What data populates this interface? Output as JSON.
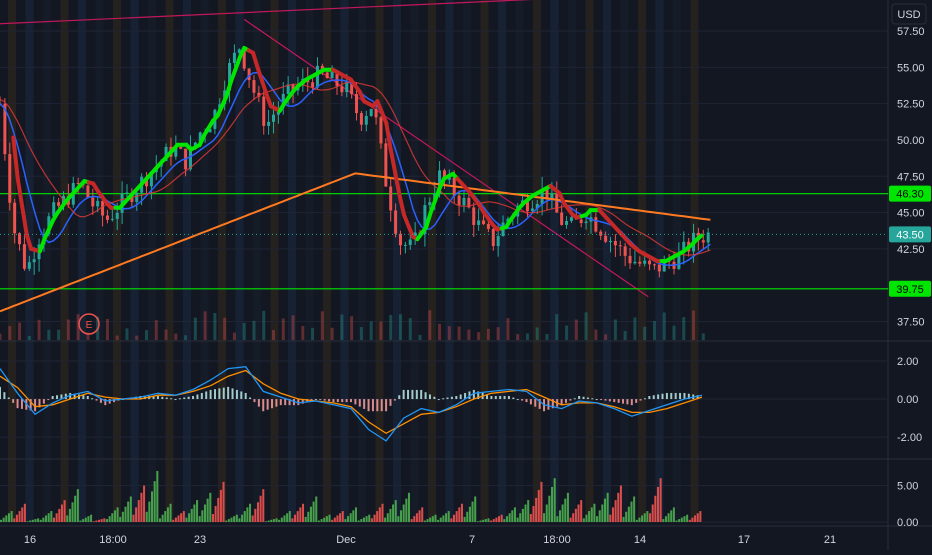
{
  "currency_label": "USD",
  "colors": {
    "background": "#131722",
    "axis_text": "#d1d4dc",
    "grid": "#1f2433",
    "up": "#26a69a",
    "down": "#ef5350",
    "level_line": "#00e600",
    "trend_line": "#c2185b",
    "ema_orange": "#ff7a21",
    "ema_blue": "#2962ff",
    "ema_red": "#e53935",
    "macd": "#2196f3",
    "signal": "#ff8f00",
    "price_label_bg": "#26a69a",
    "level_label_bg": "#00e600"
  },
  "earnings_marker": "E",
  "chart_data": [
    {
      "type": "candlestick",
      "x_ticks": [
        "16",
        "18:00",
        "23",
        "Dec",
        "7",
        "18:00",
        "14",
        "17",
        "21"
      ],
      "y_ticks": [
        "57.50",
        "55.00",
        "52.50",
        "50.00",
        "47.50",
        "45.00",
        "42.50",
        "37.50"
      ],
      "ylim": [
        36.5,
        59.5
      ],
      "last_price": "43.50",
      "horizontal_levels": [
        {
          "value": 46.3,
          "label": "46.30"
        },
        {
          "value": 39.75,
          "label": "39.75"
        }
      ],
      "trend_lines": [
        {
          "from": {
            "t": 0,
            "v": 58.0
          },
          "to": {
            "t": 100,
            "v": 60.8
          }
        },
        {
          "from": {
            "t": 27.5,
            "v": 58.3
          },
          "to": {
            "t": 73.0,
            "v": 39.2
          }
        }
      ],
      "price_path": [
        [
          0,
          52.5
        ],
        [
          1.5,
          44
        ],
        [
          3,
          41
        ],
        [
          4.5,
          43.5
        ],
        [
          6,
          45
        ],
        [
          7.5,
          46
        ],
        [
          9,
          47
        ],
        [
          10.5,
          45.5
        ],
        [
          12,
          44.5
        ],
        [
          13.5,
          45.5
        ],
        [
          15,
          46.5
        ],
        [
          16.5,
          47.5
        ],
        [
          18,
          48.5
        ],
        [
          19.5,
          49.5
        ],
        [
          21,
          48.5
        ],
        [
          22.5,
          50.5
        ],
        [
          24,
          51.5
        ],
        [
          25.5,
          54.5
        ],
        [
          27,
          56.5
        ],
        [
          28.5,
          53.5
        ],
        [
          30,
          51
        ],
        [
          31.5,
          52.5
        ],
        [
          33,
          53.5
        ],
        [
          34.5,
          54
        ],
        [
          36,
          54.5
        ],
        [
          37.5,
          54
        ],
        [
          39,
          53.5
        ],
        [
          40.5,
          51.5
        ],
        [
          42,
          52.5
        ],
        [
          43.5,
          47
        ],
        [
          45,
          43
        ],
        [
          46.5,
          42.5
        ],
        [
          48,
          45.5
        ],
        [
          49.5,
          47.5
        ],
        [
          51,
          46.5
        ],
        [
          52.5,
          45.5
        ],
        [
          54,
          44
        ],
        [
          55.5,
          43
        ],
        [
          57,
          44.5
        ],
        [
          58.5,
          45.5
        ],
        [
          60,
          46
        ],
        [
          61.5,
          46.5
        ],
        [
          63,
          44.5
        ],
        [
          64.5,
          44
        ],
        [
          66,
          45
        ],
        [
          67.5,
          44
        ],
        [
          69,
          43
        ],
        [
          70.5,
          42
        ],
        [
          72,
          41.5
        ],
        [
          73.5,
          41
        ],
        [
          75,
          41.5
        ],
        [
          76.5,
          42
        ],
        [
          78,
          43
        ],
        [
          79.5,
          43.5
        ],
        [
          80,
          43.5
        ]
      ],
      "volume_max": 100
    },
    {
      "type": "line",
      "y_ticks": [
        "2.00",
        "0.00",
        "-2.00"
      ],
      "ylim": [
        -3.1,
        3.0
      ],
      "series": [
        {
          "values": [
            1.6,
            0.3,
            -0.8,
            -0.2,
            0.2,
            0.4,
            -0.1,
            0.0,
            0.1,
            0.3,
            0.2,
            0.5,
            1.0,
            1.6,
            1.7,
            0.4,
            0.1,
            -0.2,
            -0.1,
            -0.3,
            -0.5,
            -1.6,
            -2.2,
            -1.0,
            -0.5,
            -0.7,
            -0.3,
            0.3,
            0.4,
            0.5,
            0.4,
            -0.3,
            -0.5,
            -0.1,
            -0.2,
            -0.5,
            -0.9,
            -0.6,
            -0.3,
            0.0,
            0.2
          ]
        },
        {
          "values": [
            1.2,
            0.6,
            -0.4,
            -0.3,
            0.0,
            0.3,
            0.1,
            0.0,
            0.0,
            0.2,
            0.2,
            0.4,
            0.7,
            1.2,
            1.5,
            0.8,
            0.3,
            0.0,
            -0.1,
            -0.2,
            -0.4,
            -1.2,
            -1.8,
            -1.3,
            -0.8,
            -0.7,
            -0.4,
            0.0,
            0.3,
            0.4,
            0.5,
            0.1,
            -0.3,
            -0.2,
            -0.2,
            -0.4,
            -0.7,
            -0.7,
            -0.5,
            -0.2,
            0.1
          ]
        }
      ]
    },
    {
      "type": "bar",
      "y_ticks": [
        "5.00",
        "0.00"
      ],
      "ylim": [
        0,
        8.5
      ],
      "values": [
        1.5,
        2.5,
        0.5,
        1.5,
        3.0,
        4.5,
        1.0,
        0.5,
        2.0,
        3.5,
        5.0,
        7.0,
        2.5,
        1.5,
        3.0,
        4.0,
        5.5,
        1.0,
        2.5,
        4.5,
        0.5,
        1.5,
        2.5,
        3.5,
        1.0,
        1.5,
        2.0,
        1.0,
        2.5,
        3.0,
        4.0,
        2.0,
        1.0,
        1.5,
        2.5,
        3.5,
        0.5,
        1.0,
        2.0,
        3.0,
        5.5,
        6.0,
        4.0,
        3.0,
        2.5,
        4.0,
        5.0,
        3.5,
        1.5,
        6.0,
        2.0,
        1.0,
        1.5
      ]
    }
  ]
}
